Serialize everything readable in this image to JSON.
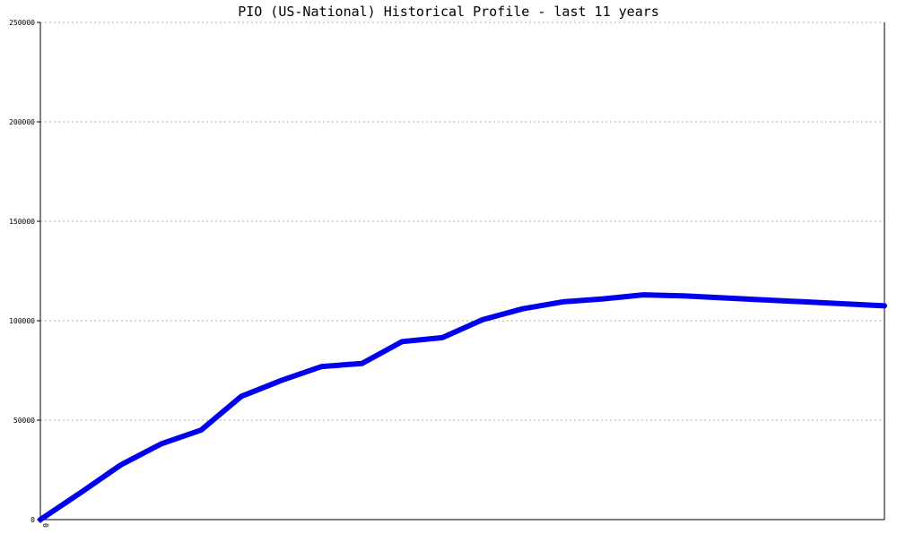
{
  "chart_data": {
    "type": "line",
    "title": "PIO (US-National) Historical Profile - last 11 years",
    "xlabel": "",
    "ylabel": "",
    "x_tick_labels": [
      "0"
    ],
    "y_tick_labels": [
      "0",
      "50000",
      "100000",
      "150000",
      "200000",
      "250000"
    ],
    "ylim": [
      0,
      250000
    ],
    "grid": "horizontal-dotted",
    "series": [
      {
        "color": "#0000ee",
        "x": [
          0,
          1,
          2,
          3,
          4,
          5,
          6,
          7,
          8,
          9,
          10,
          11,
          12,
          13,
          14,
          15,
          16,
          17,
          18,
          19,
          20,
          21
        ],
        "y": [
          0,
          13500,
          27500,
          38000,
          45000,
          62000,
          70000,
          77000,
          78500,
          89500,
          91500,
          100500,
          106000,
          109500,
          111000,
          113000,
          112500,
          111500,
          110500,
          109500,
          108500,
          107500
        ]
      }
    ]
  }
}
